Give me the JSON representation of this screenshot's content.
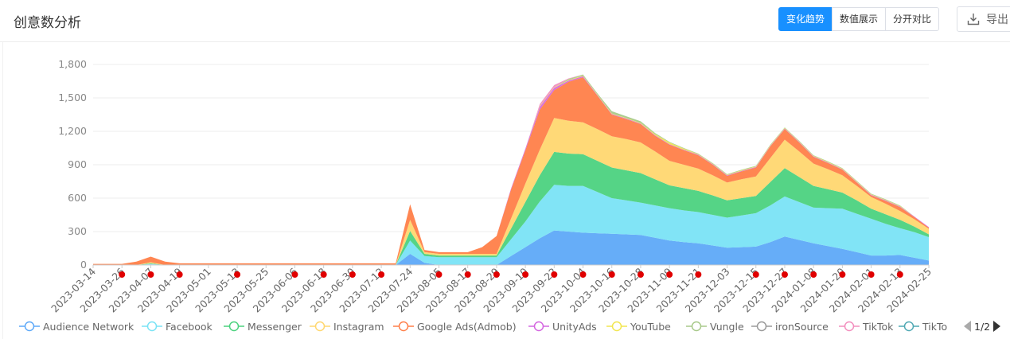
{
  "header": {
    "title": "创意数分析",
    "tabs": [
      {
        "label": "变化趋势",
        "active": true
      },
      {
        "label": "数值展示",
        "active": false
      },
      {
        "label": "分开对比",
        "active": false
      }
    ],
    "export_label": "导出"
  },
  "colors": {
    "accent": "#1890ff",
    "marker": "#e00000",
    "series": [
      "#5ea9f8",
      "#7ae3f5",
      "#4cd27f",
      "#ffd770",
      "#ff7f49",
      "#d466e0",
      "#f2e650",
      "#a8c98a",
      "#9a9a9a",
      "#f28fbe",
      "#4fa8b3"
    ]
  },
  "legend": {
    "page": "1/2",
    "visible_labels": [
      "Audience Network",
      "Facebook",
      "Messenger",
      "Instagram",
      "Google Ads(Admob)",
      "UnityAds",
      "YouTube",
      "Vungle",
      "ironSource",
      "TikTok",
      "TikTo"
    ]
  },
  "chart_data": {
    "type": "area",
    "stacked": true,
    "ylim": [
      0,
      1800
    ],
    "yticks": [
      0,
      300,
      600,
      900,
      1200,
      1500,
      1800
    ],
    "ytick_labels": [
      "0",
      "300",
      "600",
      "900",
      "1,200",
      "1,500",
      "1,800"
    ],
    "x": [
      "2023-03-14",
      "2023-03-20",
      "2023-03-26",
      "2023-04-01",
      "2023-04-07",
      "2023-04-13",
      "2023-04-19",
      "2023-04-25",
      "2023-05-01",
      "2023-05-07",
      "2023-05-13",
      "2023-05-19",
      "2023-05-25",
      "2023-05-31",
      "2023-06-06",
      "2023-06-12",
      "2023-06-18",
      "2023-06-24",
      "2023-06-30",
      "2023-07-06",
      "2023-07-12",
      "2023-07-18",
      "2023-07-24",
      "2023-07-30",
      "2023-08-05",
      "2023-08-11",
      "2023-08-17",
      "2023-08-23",
      "2023-08-29",
      "2023-09-04",
      "2023-09-10",
      "2023-09-16",
      "2023-09-22",
      "2023-09-28",
      "2023-10-04",
      "2023-10-10",
      "2023-10-16",
      "2023-10-22",
      "2023-10-28",
      "2023-11-03",
      "2023-11-09",
      "2023-11-15",
      "2023-11-21",
      "2023-11-27",
      "2023-12-03",
      "2023-12-09",
      "2023-12-15",
      "2023-12-21",
      "2023-12-27",
      "2024-01-02",
      "2024-01-08",
      "2024-01-14",
      "2024-01-20",
      "2024-01-26",
      "2024-02-01",
      "2024-02-07",
      "2024-02-13",
      "2024-02-19",
      "2024-02-25"
    ],
    "xtick_labels": [
      "2023-03-14",
      "2023-03-26",
      "2023-04-07",
      "2023-04-19",
      "2023-05-01",
      "2023-05-13",
      "2023-05-25",
      "2023-06-06",
      "2023-06-18",
      "2023-06-30",
      "2023-07-12",
      "2023-07-24",
      "2023-08-05",
      "2023-08-17",
      "2023-08-29",
      "2023-09-10",
      "2023-09-22",
      "2023-10-04",
      "2023-10-16",
      "2023-10-28",
      "2023-11-09",
      "2023-11-21",
      "2023-12-03",
      "2023-12-15",
      "2023-12-27",
      "2024-01-08",
      "2024-01-20",
      "2024-02-01",
      "2024-02-13",
      "2024-02-25"
    ],
    "series": [
      {
        "name": "Audience Network",
        "values": [
          0,
          0,
          0,
          0,
          5,
          0,
          0,
          0,
          0,
          0,
          0,
          0,
          0,
          0,
          0,
          0,
          0,
          0,
          0,
          0,
          0,
          0,
          100,
          20,
          0,
          0,
          0,
          0,
          0,
          80,
          160,
          240,
          310,
          300,
          290,
          285,
          280,
          275,
          270,
          245,
          220,
          205,
          195,
          175,
          155,
          160,
          165,
          205,
          255,
          225,
          195,
          170,
          145,
          115,
          85,
          85,
          90,
          65,
          40
        ]
      },
      {
        "name": "Facebook",
        "values": [
          0,
          0,
          0,
          0,
          5,
          0,
          0,
          0,
          0,
          0,
          0,
          0,
          0,
          0,
          0,
          0,
          0,
          0,
          0,
          0,
          0,
          0,
          120,
          60,
          70,
          70,
          70,
          70,
          70,
          150,
          230,
          330,
          410,
          410,
          420,
          370,
          320,
          305,
          290,
          290,
          290,
          285,
          280,
          275,
          270,
          285,
          300,
          330,
          360,
          340,
          320,
          340,
          360,
          345,
          330,
          285,
          240,
          230,
          210
        ]
      },
      {
        "name": "Messenger",
        "values": [
          0,
          0,
          0,
          0,
          5,
          0,
          0,
          0,
          0,
          0,
          0,
          0,
          0,
          0,
          0,
          0,
          0,
          0,
          0,
          0,
          0,
          0,
          85,
          20,
          15,
          15,
          15,
          15,
          15,
          95,
          175,
          235,
          295,
          290,
          285,
          280,
          275,
          270,
          265,
          235,
          205,
          200,
          190,
          175,
          155,
          155,
          155,
          210,
          255,
          225,
          195,
          170,
          145,
          120,
          90,
          85,
          75,
          50,
          25
        ]
      },
      {
        "name": "Instagram",
        "values": [
          0,
          0,
          0,
          0,
          10,
          0,
          0,
          0,
          0,
          0,
          0,
          0,
          0,
          0,
          0,
          0,
          0,
          0,
          0,
          0,
          0,
          0,
          100,
          15,
          15,
          15,
          15,
          15,
          15,
          90,
          165,
          230,
          305,
          295,
          285,
          285,
          280,
          280,
          275,
          250,
          220,
          210,
          200,
          180,
          160,
          170,
          175,
          215,
          255,
          230,
          200,
          180,
          155,
          130,
          105,
          95,
          80,
          65,
          50
        ]
      },
      {
        "name": "Google Ads(Admob)",
        "values": [
          10,
          10,
          10,
          30,
          50,
          30,
          15,
          15,
          15,
          15,
          15,
          15,
          15,
          15,
          15,
          15,
          15,
          15,
          15,
          15,
          15,
          15,
          140,
          20,
          15,
          15,
          15,
          60,
          160,
          260,
          300,
          360,
          250,
          350,
          405,
          300,
          195,
          180,
          165,
          140,
          145,
          130,
          120,
          95,
          60,
          70,
          80,
          105,
          95,
          80,
          60,
          55,
          50,
          30,
          15,
          25,
          35,
          20,
          10
        ]
      },
      {
        "name": "UnityAds",
        "values": [
          0,
          0,
          0,
          0,
          0,
          0,
          0,
          0,
          0,
          0,
          0,
          0,
          0,
          0,
          0,
          0,
          0,
          0,
          0,
          0,
          0,
          0,
          0,
          0,
          0,
          0,
          0,
          0,
          0,
          10,
          15,
          25,
          20,
          10,
          10,
          5,
          5,
          5,
          5,
          5,
          5,
          5,
          5,
          5,
          5,
          5,
          5,
          5,
          5,
          5,
          5,
          5,
          5,
          5,
          5,
          5,
          5,
          5,
          5
        ]
      },
      {
        "name": "YouTube",
        "values": [
          0,
          0,
          0,
          0,
          0,
          0,
          0,
          0,
          0,
          0,
          0,
          0,
          0,
          0,
          0,
          0,
          0,
          0,
          0,
          0,
          0,
          0,
          0,
          0,
          0,
          0,
          0,
          0,
          0,
          0,
          0,
          5,
          5,
          5,
          5,
          5,
          5,
          5,
          5,
          10,
          15,
          10,
          5,
          5,
          5,
          5,
          5,
          5,
          5,
          5,
          5,
          5,
          5,
          5,
          5,
          5,
          5,
          0,
          0
        ]
      },
      {
        "name": "Vungle",
        "values": [
          0,
          0,
          0,
          0,
          0,
          0,
          0,
          0,
          0,
          0,
          0,
          0,
          0,
          0,
          0,
          0,
          0,
          0,
          0,
          0,
          0,
          0,
          0,
          0,
          0,
          0,
          0,
          0,
          0,
          0,
          0,
          0,
          0,
          10,
          10,
          10,
          20,
          15,
          15,
          10,
          5,
          5,
          5,
          5,
          5,
          5,
          5,
          5,
          5,
          5,
          5,
          5,
          5,
          5,
          5,
          5,
          5,
          0,
          0
        ]
      },
      {
        "name": "ironSource",
        "values": [
          0,
          0,
          0,
          0,
          0,
          0,
          0,
          0,
          0,
          0,
          0,
          0,
          0,
          0,
          0,
          0,
          0,
          0,
          0,
          0,
          0,
          0,
          0,
          0,
          0,
          0,
          0,
          0,
          0,
          0,
          0,
          0,
          0,
          0,
          0,
          0,
          0,
          0,
          0,
          0,
          0,
          0,
          0,
          0,
          0,
          0,
          0,
          0,
          0,
          0,
          0,
          0,
          0,
          0,
          0,
          0,
          0,
          0,
          0
        ]
      },
      {
        "name": "TikTok",
        "values": [
          0,
          0,
          0,
          0,
          0,
          0,
          0,
          0,
          0,
          0,
          0,
          0,
          0,
          0,
          0,
          0,
          0,
          0,
          0,
          0,
          0,
          0,
          0,
          0,
          0,
          0,
          0,
          0,
          0,
          0,
          0,
          20,
          20,
          5,
          0,
          0,
          0,
          0,
          0,
          0,
          0,
          0,
          0,
          0,
          0,
          0,
          0,
          0,
          0,
          0,
          0,
          0,
          0,
          0,
          0,
          0,
          0,
          0,
          0
        ]
      }
    ],
    "event_markers_on": [
      "2023-03-26",
      "2023-04-07",
      "2023-04-19",
      "2023-05-13",
      "2023-06-06",
      "2023-06-18",
      "2023-06-30",
      "2023-07-12",
      "2023-08-05",
      "2023-08-17",
      "2023-08-29",
      "2023-09-10",
      "2023-09-22",
      "2023-10-04",
      "2023-10-16",
      "2023-10-28",
      "2023-11-09",
      "2023-11-21",
      "2023-12-15",
      "2023-12-27",
      "2024-01-08",
      "2024-01-20",
      "2024-02-01",
      "2024-02-13"
    ],
    "grid": true
  }
}
